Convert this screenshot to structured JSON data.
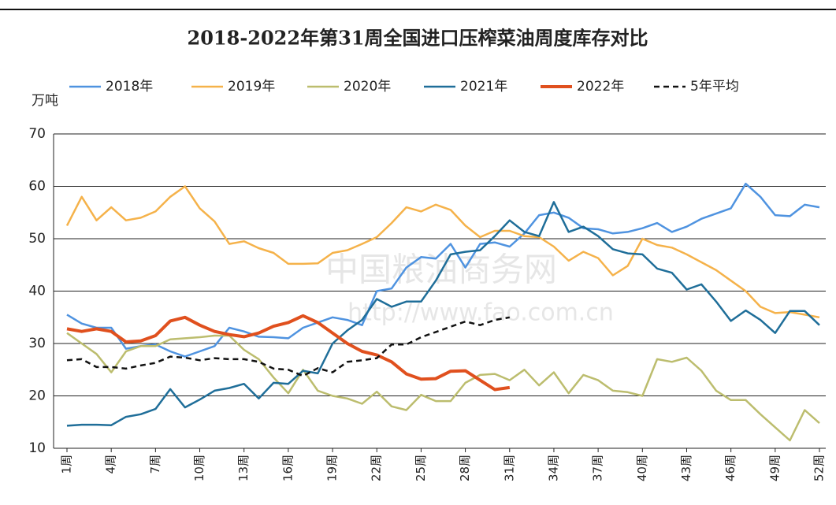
{
  "chart_data": {
    "type": "line",
    "title": "2018-2022年第31周全国进口压榨菜油周度库存对比",
    "y_label": "万吨",
    "watermark": [
      "中国粮油商务网",
      "http://www.fao.com.cn"
    ],
    "categories": [
      "1周",
      null,
      null,
      "4周",
      null,
      null,
      "7周",
      null,
      null,
      "10周",
      null,
      null,
      "13周",
      null,
      null,
      "16周",
      null,
      null,
      "19周",
      null,
      null,
      "22周",
      null,
      null,
      "25周",
      null,
      null,
      "28周",
      null,
      null,
      "31周",
      null,
      null,
      "34周",
      null,
      null,
      "37周",
      null,
      null,
      "40周",
      null,
      null,
      "43周",
      null,
      null,
      "46周",
      null,
      null,
      "49周",
      null,
      null,
      "52周"
    ],
    "ylim": [
      10,
      70
    ],
    "yticks": [
      10,
      20,
      30,
      40,
      50,
      60,
      70
    ],
    "grid": true,
    "legend": "top",
    "series": [
      {
        "name": "2018年",
        "color": "#4f93e0",
        "values": [
          35.5,
          33.8,
          33,
          33,
          29,
          29.5,
          29.8,
          28.5,
          27.5,
          28.5,
          29.5,
          33,
          32.3,
          31.3,
          31.2,
          31,
          33,
          34,
          35,
          34.5,
          33.5,
          40,
          40.5,
          44.5,
          46.5,
          46.2,
          49,
          44.5,
          49,
          49.3,
          48.5,
          51,
          54.5,
          55,
          54,
          52,
          51.8,
          51,
          51.3,
          52,
          53,
          51.3,
          52.3,
          53.8,
          54.8,
          55.8,
          60.5,
          58,
          54.5,
          54.3,
          56.5,
          56
        ]
      },
      {
        "name": "2019年",
        "color": "#f5b24a",
        "values": [
          52.5,
          58,
          53.5,
          56,
          53.5,
          54,
          55.2,
          58,
          60,
          55.8,
          53.3,
          49,
          49.5,
          48.2,
          47.3,
          45.2,
          45.2,
          45.3,
          47.3,
          47.8,
          49,
          50.3,
          53,
          56,
          55.2,
          56.5,
          55.5,
          52.5,
          50.3,
          51.5,
          51.5,
          50.5,
          50.3,
          48.5,
          45.8,
          47.5,
          46.3,
          43,
          44.8,
          50,
          48.8,
          48.3,
          47,
          45.5,
          44,
          42,
          40,
          37,
          35.8,
          36,
          35.5,
          35
        ]
      },
      {
        "name": "2020年",
        "color": "#bcbd6e",
        "values": [
          32,
          30,
          28,
          24.5,
          28.5,
          29.5,
          29.5,
          30.8,
          31,
          31.2,
          31.5,
          31.5,
          28.8,
          27,
          23.5,
          20.5,
          25,
          21,
          20,
          19.5,
          18.5,
          20.8,
          18,
          17.3,
          20.2,
          19,
          19,
          22.5,
          24,
          24.2,
          23,
          25,
          22,
          24.5,
          20.5,
          24,
          23,
          21,
          20.7,
          20,
          27,
          26.5,
          27.3,
          24.8,
          21,
          19.2,
          19.2,
          16.5,
          14,
          11.5,
          17.3,
          14.8
        ]
      },
      {
        "name": "2021年",
        "color": "#1f6e99",
        "values": [
          14.3,
          14.5,
          14.5,
          14.4,
          16,
          16.5,
          17.5,
          21.3,
          17.8,
          19.3,
          21,
          21.5,
          22.3,
          19.5,
          22.5,
          22.3,
          24.8,
          24.3,
          30,
          32.5,
          34.5,
          38.5,
          37,
          38,
          38,
          42,
          47,
          47.5,
          47.8,
          50.5,
          53.5,
          51.3,
          50.5,
          57,
          51.3,
          52.3,
          50.5,
          48,
          47.2,
          47,
          44.3,
          43.5,
          40.3,
          41.3,
          38,
          34.3,
          36.3,
          34.5,
          32,
          36.2,
          36.2,
          33.5
        ]
      },
      {
        "name": "2022年",
        "color": "#e0501e",
        "width": 4,
        "values": [
          32.8,
          32.3,
          32.8,
          32.3,
          30.3,
          30.5,
          31.5,
          34.3,
          35,
          33.5,
          32.3,
          31.7,
          31.3,
          32,
          33.3,
          34,
          35.3,
          34,
          32,
          30,
          28.5,
          27.8,
          26.5,
          24.2,
          23.2,
          23.3,
          24.7,
          24.8,
          23,
          21.2,
          21.6,
          null,
          null,
          null,
          null,
          null,
          null,
          null,
          null,
          null,
          null,
          null,
          null,
          null,
          null,
          null,
          null,
          null,
          null,
          null,
          null,
          null
        ]
      },
      {
        "name": "5年平均",
        "color": "#111111",
        "dashed": true,
        "values": [
          26.8,
          27,
          25.5,
          25.5,
          25.2,
          25.8,
          26.3,
          27.5,
          27.3,
          26.8,
          27.2,
          27,
          27,
          26.5,
          25.2,
          25,
          23.8,
          25.3,
          24.5,
          26.5,
          26.8,
          27.2,
          29.8,
          29.8,
          31.2,
          32.2,
          33.2,
          34.2,
          33.5,
          34.5,
          35,
          null,
          null,
          null,
          null,
          null,
          null,
          null,
          null,
          null,
          null,
          null,
          null,
          null,
          null,
          null,
          null,
          null,
          null,
          null,
          null,
          null
        ]
      }
    ]
  }
}
